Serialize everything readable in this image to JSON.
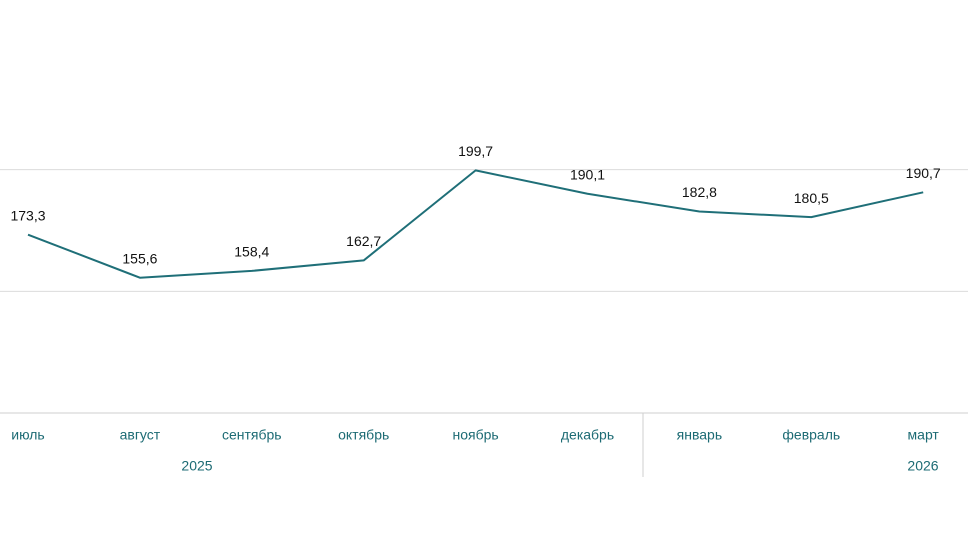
{
  "chart_data": {
    "type": "line",
    "categories": [
      "июль",
      "август",
      "сентябрь",
      "октябрь",
      "ноябрь",
      "декабрь",
      "январь",
      "февраль",
      "март"
    ],
    "years": [
      "2025",
      "2026"
    ],
    "series": [
      {
        "color": "#1f6f78",
        "values": [
          173.3,
          155.6,
          158.4,
          162.7,
          199.7,
          190.1,
          182.8,
          180.5,
          190.7
        ],
        "value_labels": [
          "173,3",
          "155,6",
          "158,4",
          "162,7",
          "199,7",
          "190,1",
          "182,8",
          "180,5",
          "190,7"
        ]
      }
    ],
    "ylim": [
      100,
      250
    ],
    "gridlines": [
      150,
      200
    ]
  }
}
